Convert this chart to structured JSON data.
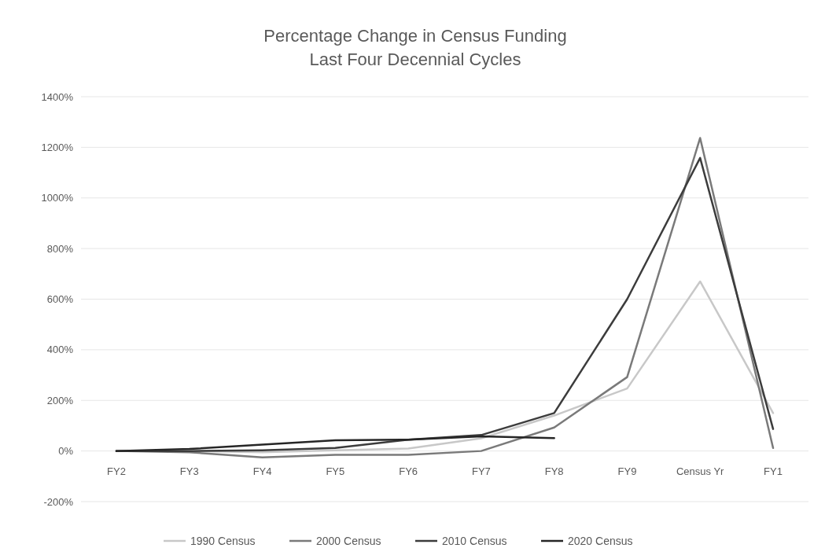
{
  "chart_data": {
    "type": "line",
    "title": "Percentage Change in Census Funding\nLast Four Decennial Cycles",
    "categories": [
      "FY2",
      "FY3",
      "FY4",
      "FY5",
      "FY6",
      "FY7",
      "FY8",
      "FY9",
      "Census Yr",
      "FY1"
    ],
    "series": [
      {
        "name": "1990 Census",
        "color": "#c8c8c8",
        "values": [
          0,
          0,
          -5,
          3,
          10,
          50,
          140,
          247,
          670,
          150
        ]
      },
      {
        "name": "2000 Census",
        "color": "#7a7a7a",
        "values": [
          0,
          -5,
          -25,
          -15,
          -15,
          0,
          93,
          292,
          1237,
          12
        ]
      },
      {
        "name": "2010 Census",
        "color": "#3c3c3c",
        "values": [
          0,
          0,
          3,
          12,
          45,
          63,
          150,
          600,
          1158,
          87
        ]
      },
      {
        "name": "2020 Census",
        "color": "#262626",
        "values": [
          0,
          8,
          25,
          42,
          45,
          58,
          51,
          null,
          null,
          null
        ]
      }
    ],
    "ylim": [
      -200,
      1400
    ],
    "yticks": [
      {
        "value": -200,
        "label": "-200%"
      },
      {
        "value": 0,
        "label": "0%"
      },
      {
        "value": 200,
        "label": "200%"
      },
      {
        "value": 400,
        "label": "400%"
      },
      {
        "value": 600,
        "label": "600%"
      },
      {
        "value": 800,
        "label": "800%"
      },
      {
        "value": 1000,
        "label": "1000%"
      },
      {
        "value": 1200,
        "label": "1200%"
      },
      {
        "value": 1400,
        "label": "1400%"
      }
    ],
    "grid": "y",
    "legend": "bottom",
    "marker": "none",
    "line_style": "solid"
  }
}
